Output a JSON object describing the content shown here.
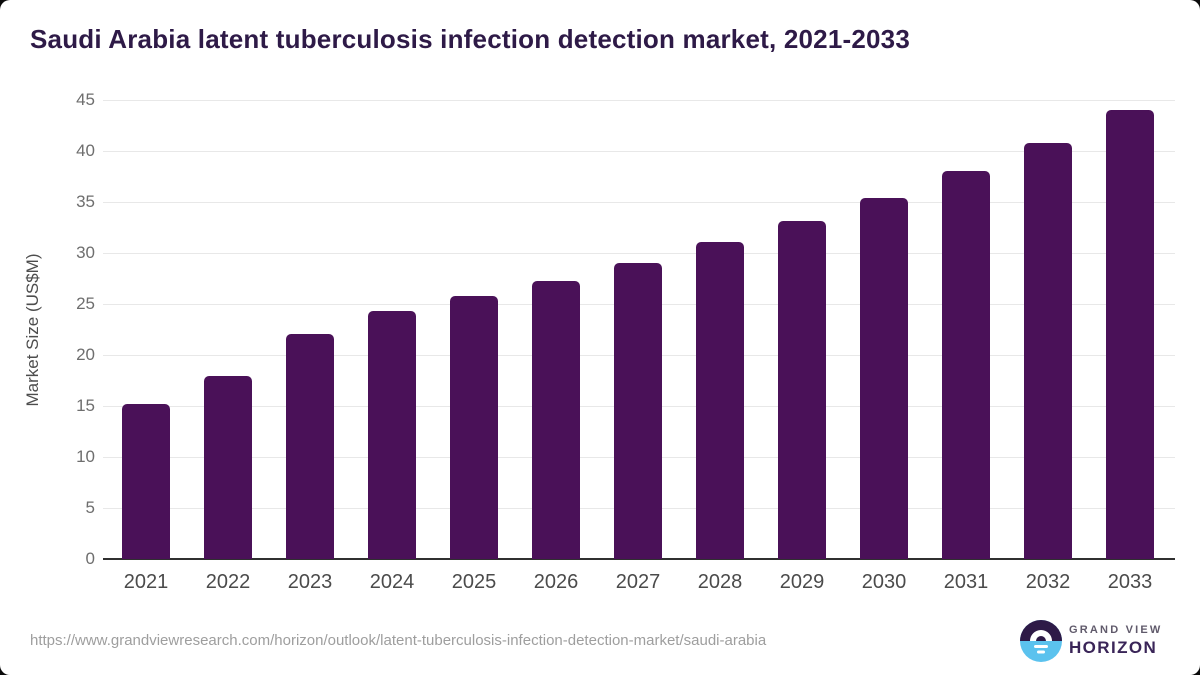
{
  "title": "Saudi Arabia latent tuberculosis infection detection market, 2021-2033",
  "chart_data": {
    "type": "bar",
    "categories": [
      "2021",
      "2022",
      "2023",
      "2024",
      "2025",
      "2026",
      "2027",
      "2028",
      "2029",
      "2030",
      "2031",
      "2032",
      "2033"
    ],
    "values": [
      15.2,
      17.9,
      22.1,
      24.3,
      25.8,
      27.3,
      29.0,
      31.1,
      33.1,
      35.4,
      38.0,
      40.8,
      44.0
    ],
    "title": "Saudi Arabia latent tuberculosis infection detection market, 2021-2033",
    "xlabel": "",
    "ylabel": "Market Size (US$M)",
    "ylim": [
      0,
      45
    ],
    "yticks": [
      0,
      5,
      10,
      15,
      20,
      25,
      30,
      35,
      40,
      45
    ],
    "grid": true,
    "legend": "none",
    "bar_color": "#4a1158"
  },
  "footer": {
    "source_url": "https://www.grandviewresearch.com/horizon/outlook/latent-tuberculosis-infection-detection-market/saudi-arabia",
    "logo": {
      "line1": "GRAND VIEW",
      "line2": "HORIZON"
    }
  },
  "colors": {
    "bar": "#4a1158",
    "title_text": "#2e1a47",
    "axis_line": "#303030",
    "gridline": "#e8e8e8",
    "logo_dark": "#2e1a47",
    "logo_blue": "#5bc2ee"
  }
}
